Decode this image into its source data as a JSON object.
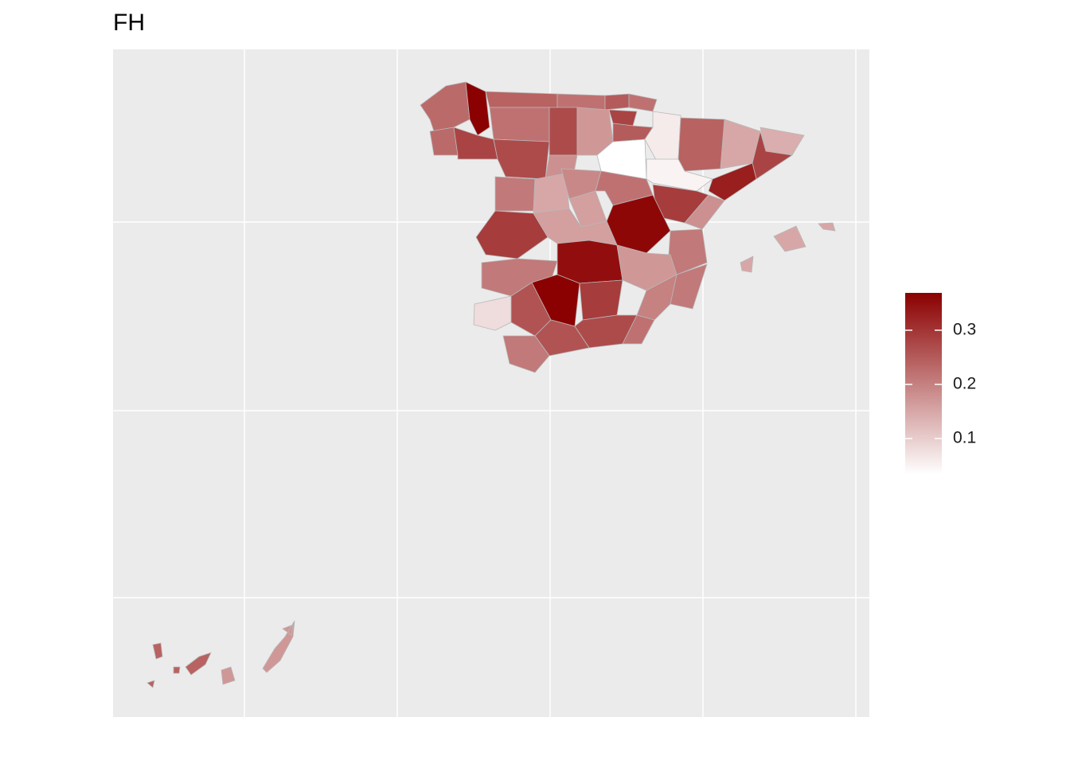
{
  "chart_data": {
    "type": "choropleth",
    "title": "FH",
    "values": [
      0.23,
      0.37,
      0.23,
      0.28,
      0.24,
      0.22,
      0.25,
      0.22,
      0.28,
      0.22,
      0.27,
      0.17,
      0.27,
      0.18,
      0.03,
      0.25,
      0.06,
      0.24,
      0.05,
      0.15,
      0.14,
      0.28,
      0.33,
      0.29,
      0.18,
      0.21,
      0.15,
      0.19,
      0.16,
      0.22,
      0.36,
      0.29,
      0.16,
      0.21,
      0.21,
      0.35,
      0.17,
      0.21,
      0.2,
      0.37,
      0.08,
      0.26,
      0.29,
      0.27,
      0.22,
      0.26,
      0.21,
      0.15,
      0.17,
      0.24
    ],
    "scale_lim": [
      0.034,
      0.369
    ],
    "low_color": "#ffffff",
    "high_color": "#8b0000",
    "legend_ticks": [
      0.1,
      0.2,
      0.3
    ]
  }
}
